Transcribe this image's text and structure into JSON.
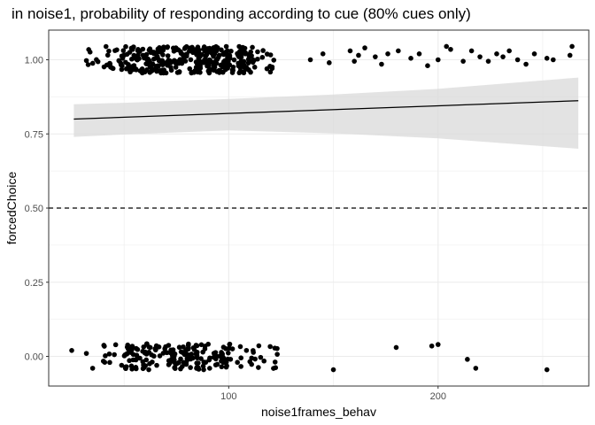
{
  "chart_data": {
    "type": "scatter",
    "title": "in noise1, probability of responding according to cue (80% cues only)",
    "xlabel": "noise1frames_behav",
    "ylabel": "forcedChoice",
    "xlim": [
      14,
      272
    ],
    "ylim": [
      -0.1,
      1.1
    ],
    "x_ticks": [
      100,
      200
    ],
    "x_tick_labels": [
      "100",
      "200"
    ],
    "y_ticks": [
      0.0,
      0.25,
      0.5,
      0.75,
      1.0
    ],
    "y_tick_labels": [
      "0.00",
      "0.25",
      "0.50",
      "0.75",
      "1.00"
    ],
    "grid": true,
    "background": "#ffffff",
    "panel_border_color": "#333333",
    "grid_color": "#ebebeb",
    "point_color": "#000000",
    "ribbon_color": "#d9d9d9",
    "reference_line": {
      "y": 0.5,
      "style": "dashed"
    },
    "fit_line": {
      "x": [
        26,
        267
      ],
      "y": [
        0.8,
        0.862
      ]
    },
    "ci_ribbon": {
      "x": [
        26,
        50,
        100,
        150,
        200,
        267
      ],
      "upper": [
        0.85,
        0.855,
        0.868,
        0.883,
        0.902,
        0.94
      ],
      "lower": [
        0.74,
        0.748,
        0.762,
        0.752,
        0.735,
        0.7
      ]
    },
    "jitter_range": 0.045,
    "clusters_y1": [
      {
        "xmin": 30,
        "xmax": 48,
        "n": 20
      },
      {
        "xmin": 48,
        "xmax": 112,
        "n": 330
      },
      {
        "xmin": 112,
        "xmax": 128,
        "n": 14
      }
    ],
    "clusters_y0": [
      {
        "xmin": 40,
        "xmax": 50,
        "n": 10
      },
      {
        "xmin": 50,
        "xmax": 102,
        "n": 170
      },
      {
        "xmin": 102,
        "xmax": 124,
        "n": 22
      }
    ],
    "extra_points": [
      {
        "x": 139,
        "y": 1.0
      },
      {
        "x": 145,
        "y": 1.02
      },
      {
        "x": 148,
        "y": 0.99
      },
      {
        "x": 158,
        "y": 1.03
      },
      {
        "x": 160,
        "y": 0.995
      },
      {
        "x": 162,
        "y": 1.015
      },
      {
        "x": 165,
        "y": 1.04
      },
      {
        "x": 170,
        "y": 1.01
      },
      {
        "x": 173,
        "y": 0.985
      },
      {
        "x": 176,
        "y": 1.02
      },
      {
        "x": 181,
        "y": 1.03
      },
      {
        "x": 187,
        "y": 1.005
      },
      {
        "x": 191,
        "y": 1.02
      },
      {
        "x": 195,
        "y": 0.98
      },
      {
        "x": 200,
        "y": 1.0
      },
      {
        "x": 204,
        "y": 1.045
      },
      {
        "x": 206,
        "y": 1.035
      },
      {
        "x": 212,
        "y": 0.995
      },
      {
        "x": 216,
        "y": 1.03
      },
      {
        "x": 220,
        "y": 1.01
      },
      {
        "x": 224,
        "y": 0.995
      },
      {
        "x": 228,
        "y": 1.02
      },
      {
        "x": 231,
        "y": 1.01
      },
      {
        "x": 234,
        "y": 1.03
      },
      {
        "x": 238,
        "y": 1.0
      },
      {
        "x": 242,
        "y": 0.985
      },
      {
        "x": 246,
        "y": 1.02
      },
      {
        "x": 252,
        "y": 1.005
      },
      {
        "x": 255,
        "y": 1.0
      },
      {
        "x": 263,
        "y": 1.015
      },
      {
        "x": 264,
        "y": 1.045
      },
      {
        "x": 25,
        "y": 0.02
      },
      {
        "x": 32,
        "y": 0.01
      },
      {
        "x": 35,
        "y": -0.04
      },
      {
        "x": 150,
        "y": -0.045
      },
      {
        "x": 180,
        "y": 0.03
      },
      {
        "x": 197,
        "y": 0.035
      },
      {
        "x": 200,
        "y": 0.04
      },
      {
        "x": 214,
        "y": -0.01
      },
      {
        "x": 218,
        "y": -0.04
      },
      {
        "x": 252,
        "y": -0.045
      }
    ]
  }
}
